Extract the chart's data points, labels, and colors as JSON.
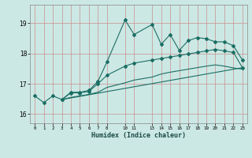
{
  "xlabel": "Humidex (Indice chaleur)",
  "bg_color": "#cce8e4",
  "line_color": "#1a6e64",
  "ylim": [
    15.7,
    19.6
  ],
  "xlim": [
    -0.5,
    23.5
  ],
  "yticks": [
    16,
    17,
    18,
    19
  ],
  "xticks": [
    0,
    1,
    2,
    3,
    4,
    5,
    6,
    7,
    8,
    10,
    11,
    13,
    14,
    15,
    16,
    17,
    18,
    19,
    20,
    21,
    22,
    23
  ],
  "series1_x": [
    0,
    1,
    2,
    3,
    4,
    5,
    6,
    7,
    8,
    10,
    11,
    13,
    14,
    15,
    16,
    17,
    18,
    19,
    20,
    21,
    22,
    23
  ],
  "series1_y": [
    16.6,
    16.38,
    16.6,
    16.48,
    16.72,
    16.72,
    16.78,
    17.08,
    17.72,
    19.1,
    18.62,
    18.95,
    18.3,
    18.62,
    18.1,
    18.42,
    18.52,
    18.48,
    18.38,
    18.38,
    18.25,
    17.78
  ],
  "series2_x": [
    3,
    4,
    5,
    6,
    7,
    8,
    10,
    11,
    13,
    14,
    15,
    16,
    17,
    18,
    19,
    20,
    21,
    22,
    23
  ],
  "series2_y": [
    16.48,
    16.7,
    16.7,
    16.75,
    17.0,
    17.28,
    17.58,
    17.68,
    17.78,
    17.83,
    17.88,
    17.93,
    17.98,
    18.03,
    18.08,
    18.13,
    18.08,
    18.03,
    17.53
  ],
  "series3_x": [
    3,
    23
  ],
  "series3_y": [
    16.48,
    17.53
  ],
  "series4_x": [
    3,
    4,
    5,
    6,
    7,
    8,
    10,
    11,
    13,
    14,
    15,
    16,
    17,
    18,
    19,
    20,
    21,
    22,
    23
  ],
  "series4_y": [
    16.48,
    16.55,
    16.6,
    16.65,
    16.72,
    16.88,
    17.03,
    17.12,
    17.22,
    17.32,
    17.38,
    17.43,
    17.48,
    17.53,
    17.58,
    17.62,
    17.58,
    17.52,
    17.48
  ]
}
